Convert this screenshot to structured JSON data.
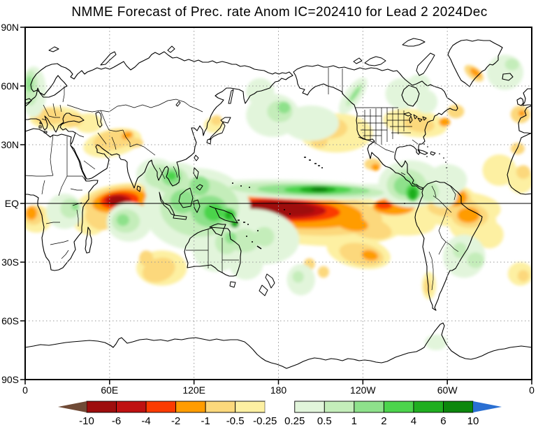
{
  "title": "NMME Forecast of Prec. rate Anom IC=202410 for Lead 2 2024Dec",
  "axes": {
    "lat_ticks": [
      {
        "label": "90N",
        "lat": 90
      },
      {
        "label": "60N",
        "lat": 60
      },
      {
        "label": "30N",
        "lat": 30
      },
      {
        "label": "EQ",
        "lat": 0
      },
      {
        "label": "30S",
        "lat": -30
      },
      {
        "label": "60S",
        "lat": -60
      },
      {
        "label": "90S",
        "lat": -90
      }
    ],
    "lon_ticks": [
      {
        "label": "0",
        "lon": 0
      },
      {
        "label": "60E",
        "lon": 60
      },
      {
        "label": "120E",
        "lon": 120
      },
      {
        "label": "180",
        "lon": 180
      },
      {
        "label": "120W",
        "lon": 240
      },
      {
        "label": "60W",
        "lon": 300
      },
      {
        "label": "0",
        "lon": 360
      }
    ]
  },
  "colorbar": {
    "tick_labels": [
      "-10",
      "-6",
      "-4",
      "-2",
      "-1",
      "-0.5",
      "-0.25",
      "0.25",
      "0.5",
      "1",
      "2",
      "4",
      "6",
      "10"
    ],
    "segment_colors": [
      "#9e0d0d",
      "#bf1111",
      "#fb3b00",
      "#ff9c00",
      "#fcd87c",
      "#fdf0a2",
      "#ffffff",
      "#e2f5db",
      "#c4edba",
      "#8ee18b",
      "#4cd44c",
      "#1fae1f",
      "#0c870c"
    ],
    "arrow_low_color": "#6f4a36",
    "arrow_high_color": "#2a6fd2"
  },
  "chart_data": {
    "type": "heatmap",
    "subtype": "filled_contour_world_map",
    "title": "NMME Forecast of Prec. rate Anom IC=202410 for Lead 2 2024Dec",
    "variable": "Precipitation rate anomaly",
    "initial_condition": "202410",
    "lead": "2",
    "valid_time": "2024Dec",
    "lon_range": [
      0,
      360
    ],
    "lat_range": [
      -90,
      90
    ],
    "x_tick_labels": [
      "0",
      "60E",
      "120E",
      "180",
      "120W",
      "60W",
      "0"
    ],
    "y_tick_labels": [
      "90N",
      "60N",
      "30N",
      "EQ",
      "30S",
      "60S",
      "90S"
    ],
    "contour_levels": [
      -10,
      -6,
      -4,
      -2,
      -1,
      -0.5,
      -0.25,
      0.25,
      0.5,
      1,
      2,
      4,
      6,
      10
    ],
    "palette": {
      "lt-10": "#6f4a36",
      "-10_-6": "#9e0d0d",
      "-6_-4": "#bf1111",
      "-4_-2": "#fb3b00",
      "-2_-1": "#ff9c00",
      "-1_-0.5": "#fcd87c",
      "-0.5_-0.25": "#fdf0a2",
      "-0.25_0.25": "#ffffff",
      "0.25_0.5": "#e2f5db",
      "0.5_1": "#c4edba",
      "1_2": "#8ee18b",
      "2_4": "#4cd44c",
      "4_6": "#1fae1f",
      "6_10": "#0c870c",
      "gt10": "#2a6fd2"
    },
    "gridlines": {
      "lon": [
        60,
        120,
        180,
        240,
        300
      ],
      "lat": [
        60,
        30,
        -30,
        -60
      ],
      "equator_solid": true,
      "style": "dotted"
    },
    "anomalies": [
      [
        "-0.5_-0.25",
        68,
        0,
        33,
        10,
        -8
      ],
      [
        "-0.5_-0.25",
        8,
        -8,
        11,
        7,
        0
      ],
      [
        "-0.5_-0.25",
        45,
        -9,
        12,
        7,
        20
      ],
      [
        "-0.5_-0.25",
        198,
        -6,
        72,
        15,
        6
      ],
      [
        "-0.5_-0.25",
        262,
        -8,
        30,
        8,
        8
      ],
      [
        "-0.5_-0.25",
        308,
        -3,
        30,
        9,
        0
      ],
      [
        "-0.5_-0.25",
        318,
        -10,
        17,
        10,
        0
      ],
      [
        "-0.5_-0.25",
        330,
        -16,
        10,
        7,
        0
      ],
      [
        "-0.5_-0.25",
        237,
        -25,
        23,
        8,
        12
      ],
      [
        "-0.5_-0.25",
        97,
        -33,
        18,
        9,
        0
      ],
      [
        "-0.5_-0.25",
        22,
        43.5,
        19,
        6,
        0
      ],
      [
        "-0.5_-0.25",
        45,
        41,
        10,
        5,
        0
      ],
      [
        "-0.5_-0.25",
        62,
        31,
        21,
        7,
        -12
      ],
      [
        "-0.5_-0.25",
        221,
        36,
        26,
        10,
        0
      ],
      [
        "-0.5_-0.25",
        277,
        41,
        23,
        7,
        8
      ],
      [
        "-0.5_-0.25",
        337,
        17,
        12,
        8,
        0
      ],
      [
        "-0.5_-0.25",
        134,
        40,
        7,
        4,
        0
      ],
      [
        "-0.5_-0.25",
        352,
        12,
        9,
        7,
        0
      ],
      [
        "-0.5_-0.25",
        352,
        -36,
        9,
        6,
        0
      ],
      [
        "-0.5_-0.25",
        287,
        -42,
        5,
        7,
        0
      ],
      [
        "-0.5_-0.25",
        307,
        1,
        14,
        8,
        0
      ],
      [
        "-1_-0.5",
        68,
        1,
        26,
        8,
        -8
      ],
      [
        "-1_-0.5",
        52,
        -8,
        10,
        5,
        30
      ],
      [
        "-1_-0.5",
        6,
        -6,
        7,
        5,
        0
      ],
      [
        "-1_-0.5",
        196,
        -4.5,
        58,
        11.5,
        5
      ],
      [
        "-1_-0.5",
        243,
        -12,
        18,
        5.5,
        15
      ],
      [
        "-1_-0.5",
        304,
        -2,
        18,
        5,
        0
      ],
      [
        "-1_-0.5",
        316,
        -6.5,
        13,
        6,
        0
      ],
      [
        "-1_-0.5",
        239,
        -26,
        16,
        5.5,
        12
      ],
      [
        "-1_-0.5",
        95,
        -34,
        12,
        6,
        -20
      ],
      [
        "-1_-0.5",
        86,
        -28,
        5,
        4,
        0
      ],
      [
        "-1_-0.5",
        17,
        44.5,
        12,
        4.2,
        0
      ],
      [
        "-1_-0.5",
        33,
        42.5,
        8,
        3.5,
        0
      ],
      [
        "-1_-0.5",
        63,
        32.5,
        15,
        5,
        -12
      ],
      [
        "-1_-0.5",
        78,
        31,
        6,
        2.5,
        0
      ],
      [
        "-1_-0.5",
        216,
        38.5,
        13,
        5.5,
        0
      ],
      [
        "-1_-0.5",
        209,
        32,
        6,
        3.5,
        0
      ],
      [
        "-1_-0.5",
        280,
        40.5,
        11,
        4,
        8
      ],
      [
        "-1_-0.5",
        306,
        47,
        6,
        3.5,
        0
      ],
      [
        "-1_-0.5",
        352,
        45.5,
        7,
        4.5,
        0
      ],
      [
        "-1_-0.5",
        350,
        28,
        5,
        3,
        0
      ],
      [
        "-1_-0.5",
        319,
        66.5,
        8,
        3,
        38
      ],
      [
        "-1_-0.5",
        136,
        42.5,
        4,
        2.6,
        0
      ],
      [
        "-1_-0.5",
        286,
        -42.5,
        2.5,
        4,
        0
      ],
      [
        "-1_-0.5",
        247,
        20,
        6,
        3,
        0
      ],
      [
        "-1_-0.5",
        307,
        2,
        10,
        6,
        0
      ],
      [
        "-1_-0.5",
        354,
        -37,
        4,
        3,
        0
      ],
      [
        "-1_-0.5",
        202,
        -31,
        4,
        3,
        0
      ],
      [
        "-1_-0.5",
        212,
        -35,
        4,
        3,
        0
      ],
      [
        "-1_-0.5",
        354,
        16,
        5,
        3.5,
        0
      ],
      [
        "-2_-1",
        67.5,
        1.3,
        20,
        6,
        -8
      ],
      [
        "-2_-1",
        4.5,
        -5,
        4,
        3.5,
        0
      ],
      [
        "-2_-1",
        190,
        -4,
        50,
        8.5,
        4
      ],
      [
        "-2_-1",
        232,
        -10,
        12,
        4,
        12
      ],
      [
        "-2_-1",
        262,
        -1.5,
        15,
        4.5,
        0
      ],
      [
        "-2_-1",
        306,
        3,
        8,
        4.5,
        0
      ],
      [
        "-2_-1",
        315,
        -6,
        8,
        4,
        0
      ],
      [
        "-2_-1",
        245,
        -26.5,
        6,
        2.6,
        12
      ],
      [
        "-2_-1",
        72.5,
        34.8,
        4,
        1.8,
        -20
      ],
      [
        "-2_-1",
        320,
        66.8,
        4.6,
        1.7,
        38
      ],
      [
        "-2_-1",
        298,
        41.5,
        4,
        2.2,
        0
      ],
      [
        "-2_-1",
        353,
        46,
        2.5,
        1.6,
        0
      ],
      [
        "-2_-1",
        249,
        18.5,
        3,
        1.8,
        0
      ],
      [
        "-4_-2",
        67,
        1.5,
        14,
        4.4,
        -5
      ],
      [
        "-4_-2",
        184,
        -3.2,
        40,
        6,
        3
      ],
      [
        "-4_-2",
        255,
        -1,
        6,
        2,
        0
      ],
      [
        "-6_-4",
        66,
        1.6,
        9.5,
        3,
        0
      ],
      [
        "-6_-4",
        181,
        -3,
        33,
        4.8,
        2
      ],
      [
        "-10_-6",
        65.5,
        1.7,
        5.5,
        2.1,
        0
      ],
      [
        "-10_-6",
        180,
        -2.8,
        26,
        3.6,
        2
      ],
      [
        "0.25_0.5",
        196,
        7,
        72,
        5,
        2
      ],
      [
        "0.25_0.5",
        240,
        6.5,
        40,
        3.5,
        0
      ],
      [
        "0.25_0.5",
        122,
        -3,
        38,
        21,
        0
      ],
      [
        "0.25_0.5",
        107,
        8,
        22,
        13,
        0
      ],
      [
        "0.25_0.5",
        93,
        15,
        14,
        8,
        0
      ],
      [
        "0.25_0.5",
        165,
        -17,
        30,
        14,
        8
      ],
      [
        "0.25_0.5",
        196,
        -39,
        10,
        8,
        0
      ],
      [
        "0.25_0.5",
        157,
        -31,
        12,
        8,
        0
      ],
      [
        "0.25_0.5",
        136,
        -23,
        17,
        12,
        0
      ],
      [
        "0.25_0.5",
        74,
        -9.5,
        16,
        10,
        0
      ],
      [
        "0.25_0.5",
        28,
        -4,
        13,
        9,
        0
      ],
      [
        "0.25_0.5",
        6,
        57,
        9,
        13,
        0
      ],
      [
        "0.25_0.5",
        341,
        67,
        13,
        9,
        0
      ],
      [
        "0.25_0.5",
        176,
        45,
        19,
        11,
        0
      ],
      [
        "0.25_0.5",
        167,
        57,
        10,
        7,
        0
      ],
      [
        "0.25_0.5",
        233,
        55,
        6,
        11,
        35
      ],
      [
        "0.25_0.5",
        203,
        41,
        20,
        9,
        0
      ],
      [
        "0.25_0.5",
        274,
        10,
        23,
        12,
        0
      ],
      [
        "0.25_0.5",
        300,
        12,
        14,
        8,
        0
      ],
      [
        "0.25_0.5",
        297,
        4,
        10,
        6,
        0
      ],
      [
        "0.25_0.5",
        312,
        -27,
        15,
        11,
        0
      ],
      [
        "0.25_0.5",
        268,
        56,
        12,
        8,
        0
      ],
      [
        "0.25_0.5",
        280,
        61,
        8,
        5,
        0
      ],
      [
        "0.25_0.5",
        285,
        52,
        8,
        6,
        0
      ],
      [
        "0.25_0.5",
        292,
        -71,
        8,
        4,
        0
      ],
      [
        "0.5_1",
        200,
        6.8,
        55,
        3.6,
        2
      ],
      [
        "0.5_1",
        124,
        -2,
        28,
        15,
        0
      ],
      [
        "0.5_1",
        104,
        12,
        12,
        7,
        0
      ],
      [
        "0.5_1",
        95,
        14,
        10,
        6,
        0
      ],
      [
        "0.5_1",
        156,
        -19,
        10,
        6,
        0
      ],
      [
        "0.5_1",
        170,
        -17,
        7,
        5,
        0
      ],
      [
        "0.5_1",
        194,
        -37.5,
        4,
        3,
        0
      ],
      [
        "0.5_1",
        143,
        -20,
        8,
        6,
        0
      ],
      [
        "0.5_1",
        71.5,
        -9,
        10,
        6,
        0
      ],
      [
        "0.5_1",
        32,
        -2.5,
        7,
        5,
        0
      ],
      [
        "0.5_1",
        4,
        59,
        5,
        9,
        0
      ],
      [
        "0.5_1",
        346,
        71,
        5,
        3,
        0
      ],
      [
        "0.5_1",
        181,
        47,
        9,
        5.5,
        0
      ],
      [
        "0.5_1",
        234,
        55.5,
        2.6,
        7,
        35
      ],
      [
        "0.5_1",
        271,
        9.5,
        14,
        8,
        0
      ],
      [
        "0.5_1",
        287,
        6,
        7,
        5,
        0
      ],
      [
        "0.5_1",
        309,
        -24,
        5,
        4,
        0
      ],
      [
        "0.5_1",
        320,
        -29,
        6,
        4,
        0
      ],
      [
        "1_2",
        205,
        6.9,
        40,
        2.8,
        1
      ],
      [
        "1_2",
        131,
        -4,
        13,
        8,
        0
      ],
      [
        "1_2",
        112,
        1,
        9,
        6,
        0
      ],
      [
        "1_2",
        104,
        13.5,
        7,
        4.5,
        0
      ],
      [
        "1_2",
        124,
        9,
        7,
        5,
        0
      ],
      [
        "1_2",
        69.5,
        -8.5,
        4.5,
        3,
        0
      ],
      [
        "1_2",
        35.5,
        -1.5,
        2.5,
        2,
        0
      ],
      [
        "1_2",
        3,
        61,
        2.5,
        4,
        0
      ],
      [
        "1_2",
        184,
        49,
        4.5,
        3,
        0
      ],
      [
        "1_2",
        234.5,
        56,
        1.4,
        4.5,
        35
      ],
      [
        "1_2",
        270,
        9,
        8,
        5,
        0
      ],
      [
        "1_2",
        146,
        -17.5,
        4,
        3,
        0
      ],
      [
        "2_4",
        208,
        7,
        24,
        2.2,
        0
      ],
      [
        "2_4",
        134,
        -4.5,
        7,
        4.5,
        0
      ],
      [
        "2_4",
        145,
        -6,
        5,
        3.5,
        0
      ],
      [
        "2_4",
        104,
        14,
        3.5,
        2.2,
        0
      ],
      [
        "2_4",
        275.5,
        5.5,
        5,
        4.5,
        0
      ],
      [
        "4_6",
        208,
        7.1,
        13,
        1.8,
        0
      ],
      [
        "4_6",
        144.5,
        -6,
        2.5,
        2,
        0
      ],
      [
        "4_6",
        275.5,
        5,
        3,
        3,
        0
      ],
      [
        "4_6",
        149,
        -10.5,
        3,
        2,
        0
      ],
      [
        "6_10",
        209,
        7.2,
        6,
        1.3,
        0
      ]
    ]
  }
}
